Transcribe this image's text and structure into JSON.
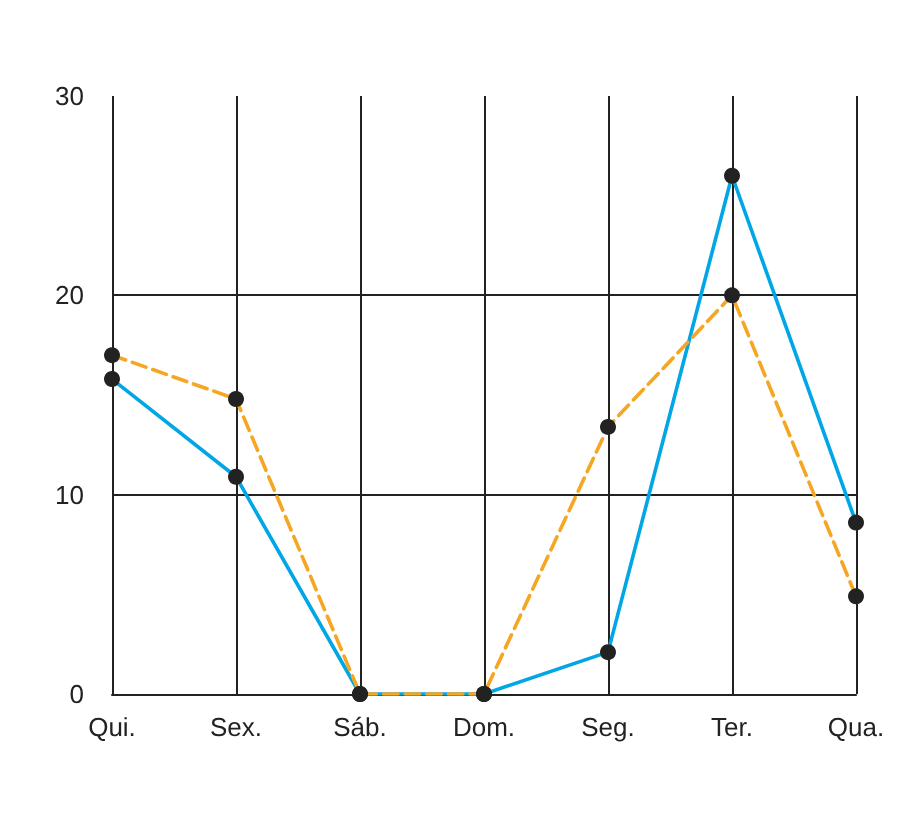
{
  "chart_data": {
    "type": "line",
    "categories": [
      "Qui.",
      "Sex.",
      "Sáb.",
      "Dom.",
      "Seg.",
      "Ter.",
      "Qua."
    ],
    "series": [
      {
        "color": "#00a6e6",
        "line_style": "solid",
        "values": [
          15.8,
          10.9,
          0,
          0,
          2.1,
          26,
          8.6
        ]
      },
      {
        "color": "#f5a623",
        "line_style": "dashed",
        "values": [
          17,
          14.8,
          0,
          0,
          13.4,
          20,
          4.9
        ]
      }
    ],
    "ylim": [
      0,
      30
    ],
    "yticks": [
      0,
      10,
      20,
      30
    ],
    "grid": true,
    "marker": "circle"
  }
}
